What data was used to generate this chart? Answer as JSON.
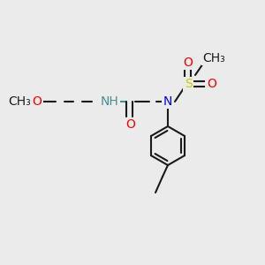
{
  "bg_color": "#ebebeb",
  "bond_color": "#1a1a1a",
  "atom_colors": {
    "O": "#ff0000",
    "N": "#0000ff",
    "NH": "#4a8f8f",
    "S": "#cccc00"
  },
  "font_size": 9,
  "lw": 1.5
}
